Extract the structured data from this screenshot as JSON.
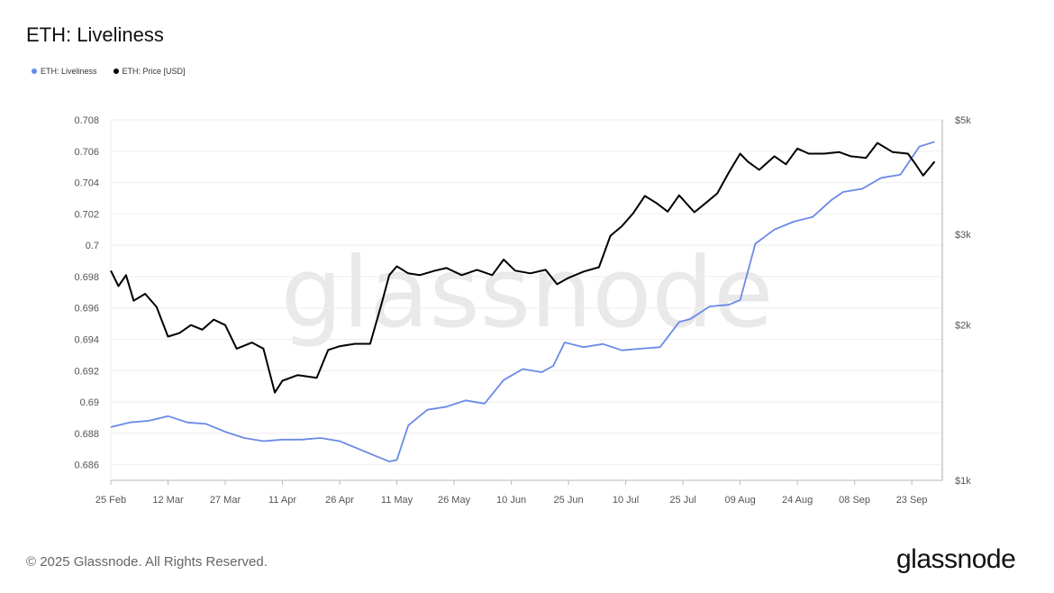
{
  "header": {
    "title": "ETH: Liveliness"
  },
  "footer": {
    "copyright": "© 2025 Glassnode. All Rights Reserved.",
    "brand": "glassnode"
  },
  "watermark": "glassnode",
  "colors": {
    "liveliness": "#6a8ae6",
    "price": "#000000",
    "grid": "#eeeeee",
    "axis": "#b9b9b9"
  },
  "chart_data": {
    "type": "line",
    "title": "ETH: Liveliness",
    "legend": {
      "placement": "top-left",
      "entries": [
        "ETH: Liveliness",
        "ETH: Price [USD]"
      ]
    },
    "x_ticks": [
      "25 Feb",
      "12 Mar",
      "27 Mar",
      "11 Apr",
      "26 Apr",
      "11 May",
      "26 May",
      "10 Jun",
      "25 Jun",
      "10 Jul",
      "25 Jul",
      "09 Aug",
      "24 Aug",
      "08 Sep",
      "23 Sep"
    ],
    "y_left": {
      "ticks": [
        "0.708",
        "0.706",
        "0.704",
        "0.702",
        "0.7",
        "0.698",
        "0.696",
        "0.694",
        "0.692",
        "0.69",
        "0.688",
        "0.686"
      ],
      "range": [
        0.685,
        0.708
      ]
    },
    "y_right": {
      "scale": "log",
      "ticks": [
        "$5k",
        "$3k",
        "$2k",
        "$1k"
      ],
      "tick_values": [
        5000,
        3000,
        2000,
        1000
      ],
      "range": [
        1000,
        5000
      ]
    },
    "grid": true,
    "series": [
      {
        "name": "ETH: Liveliness",
        "axis": "left",
        "x": [
          "2025-02-25",
          "2025-03-02",
          "2025-03-07",
          "2025-03-12",
          "2025-03-17",
          "2025-03-22",
          "2025-03-27",
          "2025-04-01",
          "2025-04-06",
          "2025-04-11",
          "2025-04-16",
          "2025-04-21",
          "2025-04-26",
          "2025-05-01",
          "2025-05-06",
          "2025-05-09",
          "2025-05-11",
          "2025-05-14",
          "2025-05-19",
          "2025-05-24",
          "2025-05-29",
          "2025-06-03",
          "2025-06-08",
          "2025-06-13",
          "2025-06-18",
          "2025-06-21",
          "2025-06-24",
          "2025-06-29",
          "2025-07-04",
          "2025-07-09",
          "2025-07-14",
          "2025-07-19",
          "2025-07-24",
          "2025-07-27",
          "2025-08-01",
          "2025-08-06",
          "2025-08-09",
          "2025-08-13",
          "2025-08-18",
          "2025-08-23",
          "2025-08-28",
          "2025-09-02",
          "2025-09-05",
          "2025-09-10",
          "2025-09-15",
          "2025-09-20",
          "2025-09-25",
          "2025-09-29"
        ],
        "y": [
          0.6884,
          0.6887,
          0.6888,
          0.6891,
          0.6887,
          0.6886,
          0.6881,
          0.6877,
          0.6875,
          0.6876,
          0.6876,
          0.6877,
          0.6875,
          0.687,
          0.6865,
          0.6862,
          0.6863,
          0.6885,
          0.6895,
          0.6897,
          0.6901,
          0.6899,
          0.6914,
          0.6921,
          0.6919,
          0.6923,
          0.6938,
          0.6935,
          0.6937,
          0.6933,
          0.6934,
          0.6935,
          0.6951,
          0.6953,
          0.6961,
          0.6962,
          0.6965,
          0.7001,
          0.701,
          0.7015,
          0.7018,
          0.7029,
          0.7034,
          0.7036,
          0.7043,
          0.7045,
          0.7063,
          0.7066
        ]
      },
      {
        "name": "ETH: Price [USD]",
        "axis": "right",
        "x": [
          "2025-02-25",
          "2025-02-27",
          "2025-03-01",
          "2025-03-03",
          "2025-03-06",
          "2025-03-09",
          "2025-03-12",
          "2025-03-15",
          "2025-03-18",
          "2025-03-21",
          "2025-03-24",
          "2025-03-27",
          "2025-03-30",
          "2025-04-03",
          "2025-04-06",
          "2025-04-09",
          "2025-04-11",
          "2025-04-15",
          "2025-04-20",
          "2025-04-23",
          "2025-04-26",
          "2025-04-30",
          "2025-05-04",
          "2025-05-07",
          "2025-05-09",
          "2025-05-11",
          "2025-05-14",
          "2025-05-17",
          "2025-05-21",
          "2025-05-24",
          "2025-05-28",
          "2025-06-01",
          "2025-06-05",
          "2025-06-08",
          "2025-06-11",
          "2025-06-15",
          "2025-06-19",
          "2025-06-22",
          "2025-06-25",
          "2025-06-29",
          "2025-07-03",
          "2025-07-06",
          "2025-07-09",
          "2025-07-12",
          "2025-07-15",
          "2025-07-18",
          "2025-07-21",
          "2025-07-24",
          "2025-07-28",
          "2025-07-31",
          "2025-08-03",
          "2025-08-06",
          "2025-08-09",
          "2025-08-11",
          "2025-08-14",
          "2025-08-18",
          "2025-08-21",
          "2025-08-24",
          "2025-08-27",
          "2025-08-31",
          "2025-09-04",
          "2025-09-07",
          "2025-09-11",
          "2025-09-14",
          "2025-09-18",
          "2025-09-22",
          "2025-09-24",
          "2025-09-26",
          "2025-09-29"
        ],
        "y": [
          2550,
          2380,
          2500,
          2230,
          2300,
          2170,
          1900,
          1930,
          2000,
          1960,
          2050,
          2000,
          1800,
          1850,
          1800,
          1480,
          1560,
          1600,
          1580,
          1790,
          1820,
          1840,
          1840,
          2200,
          2500,
          2600,
          2520,
          2500,
          2550,
          2580,
          2500,
          2560,
          2500,
          2680,
          2550,
          2520,
          2560,
          2400,
          2470,
          2540,
          2590,
          2980,
          3110,
          3300,
          3560,
          3450,
          3320,
          3570,
          3310,
          3450,
          3600,
          3950,
          4300,
          4150,
          4000,
          4250,
          4100,
          4400,
          4300,
          4300,
          4330,
          4250,
          4220,
          4510,
          4330,
          4300,
          4100,
          3900,
          4150
        ]
      }
    ]
  }
}
